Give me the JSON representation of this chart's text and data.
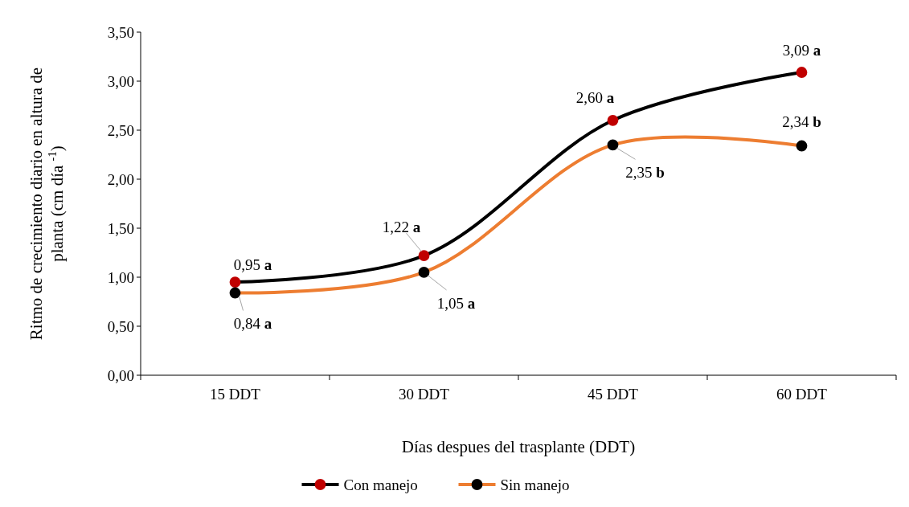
{
  "chart_data": {
    "type": "line",
    "xlabel": "Días despues del trasplante (DDT)",
    "ylabel": "Ritmo de crecimiento diario en altura de planta (cm día $^{-1}$)",
    "categories": [
      "15 DDT",
      "30 DDT",
      "45 DDT",
      "60 DDT"
    ],
    "ylim": [
      0,
      3.5
    ],
    "yticks": [
      {
        "value": 0,
        "label": "0,00"
      },
      {
        "value": 0.5,
        "label": "0,50"
      },
      {
        "value": 1,
        "label": "1,00"
      },
      {
        "value": 1.5,
        "label": "1,50"
      },
      {
        "value": 2,
        "label": "2,00"
      },
      {
        "value": 2.5,
        "label": "2,50"
      },
      {
        "value": 3,
        "label": "3,00"
      },
      {
        "value": 3.5,
        "label": "3,50"
      }
    ],
    "series": [
      {
        "name": "Con manejo",
        "color": "#000000",
        "colors": [
          "#c00000",
          "#c00000",
          "#c00000",
          "#c00000"
        ],
        "values": [
          0.95,
          1.22,
          2.6,
          3.09
        ],
        "value_labels": [
          "0,95 a",
          "1,22 a",
          "2,60 a",
          "3,09 a"
        ]
      },
      {
        "name": "Sin manejo",
        "color": "#ed7d31",
        "colors": [
          "#000000",
          "#000000",
          "#000000",
          "#000000"
        ],
        "values": [
          0.84,
          1.05,
          2.35,
          2.34
        ],
        "value_labels": [
          "0,84 a",
          "1,05 a",
          "2,35 b",
          "2,34 b"
        ]
      }
    ],
    "grid": false,
    "legend": "bottom",
    "marker": "circle",
    "line_style": "solid"
  }
}
